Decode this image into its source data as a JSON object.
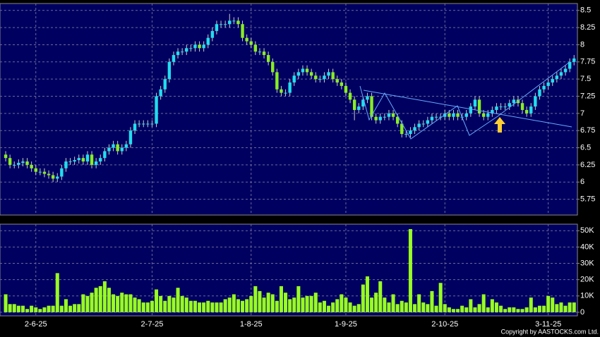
{
  "chart_data": [
    {
      "type": "candlestick",
      "categories": [
        null,
        null,
        null,
        null,
        null,
        null,
        null,
        "2-6-25",
        null,
        null,
        null,
        null,
        null,
        null,
        null,
        null,
        null,
        null,
        null,
        null,
        null,
        null,
        null,
        null,
        null,
        null,
        null,
        null,
        null,
        null,
        null,
        null,
        null,
        null,
        "2-7-25",
        null,
        null,
        null,
        null,
        null,
        null,
        null,
        null,
        null,
        null,
        null,
        null,
        null,
        null,
        null,
        null,
        null,
        null,
        null,
        null,
        null,
        null,
        "1-8-25",
        null,
        null,
        null,
        null,
        null,
        null,
        null,
        null,
        null,
        null,
        null,
        null,
        null,
        null,
        null,
        null,
        null,
        null,
        null,
        null,
        null,
        "1-9-25",
        null,
        null,
        null,
        null,
        null,
        null,
        null,
        null,
        null,
        null,
        null,
        null,
        null,
        null,
        null,
        null,
        null,
        null,
        null,
        null,
        null,
        null,
        "2-10-25",
        null,
        null,
        null,
        null,
        null,
        null,
        null,
        null,
        null,
        null,
        null,
        null,
        null,
        null,
        null,
        null,
        null,
        null,
        null,
        null,
        null,
        null,
        null,
        "3-11-25",
        null,
        null,
        null,
        null,
        null,
        null
      ],
      "open": [
        6.4,
        6.35,
        6.25,
        6.25,
        6.28,
        6.3,
        6.25,
        6.2,
        6.15,
        6.15,
        6.12,
        6.1,
        6.05,
        6.08,
        6.2,
        6.3,
        6.3,
        6.32,
        6.35,
        6.3,
        6.4,
        6.25,
        6.3,
        6.35,
        6.45,
        6.5,
        6.55,
        6.45,
        6.5,
        6.55,
        6.75,
        6.85,
        6.85,
        6.85,
        6.85,
        6.85,
        7.25,
        7.35,
        7.5,
        7.75,
        7.85,
        7.9,
        7.9,
        7.95,
        7.95,
        8.0,
        7.95,
        8.0,
        8.1,
        8.2,
        8.3,
        8.3,
        8.3,
        8.35,
        8.35,
        8.3,
        8.1,
        8.05,
        8.0,
        7.9,
        7.9,
        7.85,
        7.75,
        7.6,
        7.35,
        7.3,
        7.3,
        7.45,
        7.55,
        7.6,
        7.65,
        7.6,
        7.55,
        7.5,
        7.5,
        7.55,
        7.6,
        7.5,
        7.45,
        7.4,
        7.3,
        7.2,
        7.05,
        7.1,
        7.2,
        7.25,
        6.95,
        6.9,
        6.95,
        6.95,
        7.0,
        6.95,
        6.85,
        6.7,
        6.7,
        6.75,
        6.8,
        6.85,
        6.85,
        6.9,
        6.95,
        6.95,
        6.95,
        7.0,
        6.95,
        7.0,
        6.95,
        6.95,
        7.0,
        7.1,
        7.2,
        7.0,
        6.95,
        7.0,
        7.05,
        7.1,
        7.1,
        7.1,
        7.15,
        7.2,
        7.15,
        7.05,
        7.0,
        7.1,
        7.25,
        7.35,
        7.4,
        7.45,
        7.5,
        7.55,
        7.6,
        7.65,
        7.75
      ],
      "high": [
        6.45,
        6.4,
        6.3,
        6.33,
        6.35,
        6.35,
        6.3,
        6.25,
        6.2,
        6.2,
        6.17,
        6.15,
        6.13,
        6.25,
        6.35,
        6.35,
        6.37,
        6.4,
        6.4,
        6.45,
        6.45,
        6.35,
        6.4,
        6.5,
        6.55,
        6.6,
        6.6,
        6.55,
        6.6,
        6.8,
        6.9,
        6.9,
        6.9,
        6.9,
        6.9,
        7.3,
        7.4,
        7.55,
        7.8,
        7.9,
        7.95,
        7.95,
        8.0,
        8.0,
        8.05,
        8.05,
        8.05,
        8.15,
        8.25,
        8.35,
        8.35,
        8.35,
        8.45,
        8.4,
        8.4,
        8.35,
        8.15,
        8.1,
        8.05,
        7.95,
        7.95,
        7.9,
        7.8,
        7.65,
        7.4,
        7.35,
        7.5,
        7.6,
        7.65,
        7.7,
        7.7,
        7.65,
        7.6,
        7.55,
        7.6,
        7.65,
        7.65,
        7.55,
        7.5,
        7.45,
        7.35,
        7.25,
        7.15,
        7.25,
        7.3,
        7.3,
        7.0,
        7.0,
        7.0,
        7.05,
        7.05,
        7.0,
        6.9,
        6.75,
        6.8,
        6.85,
        6.9,
        6.9,
        6.95,
        7.0,
        7.0,
        7.0,
        7.05,
        7.05,
        7.05,
        7.05,
        7.0,
        7.05,
        7.15,
        7.25,
        7.25,
        7.05,
        7.05,
        7.1,
        7.15,
        7.15,
        7.15,
        7.2,
        7.25,
        7.25,
        7.2,
        7.1,
        7.15,
        7.3,
        7.4,
        7.45,
        7.5,
        7.55,
        7.6,
        7.65,
        7.7,
        7.8,
        7.85
      ],
      "low": [
        6.3,
        6.2,
        6.2,
        6.2,
        6.23,
        6.2,
        6.15,
        6.1,
        6.1,
        6.07,
        6.05,
        6.0,
        6.0,
        6.03,
        6.15,
        6.25,
        6.25,
        6.27,
        6.25,
        6.25,
        6.2,
        6.2,
        6.25,
        6.3,
        6.4,
        6.45,
        6.4,
        6.4,
        6.45,
        6.5,
        6.7,
        6.8,
        6.8,
        6.8,
        6.8,
        6.8,
        7.2,
        7.3,
        7.45,
        7.7,
        7.8,
        7.85,
        7.85,
        7.9,
        7.9,
        7.9,
        7.9,
        7.95,
        8.05,
        8.15,
        8.25,
        8.25,
        8.25,
        8.3,
        8.25,
        8.05,
        8.0,
        7.95,
        7.85,
        7.85,
        7.8,
        7.7,
        7.55,
        7.3,
        7.25,
        7.25,
        7.25,
        7.4,
        7.5,
        7.55,
        7.55,
        7.5,
        7.45,
        7.45,
        7.45,
        7.5,
        7.45,
        7.4,
        7.35,
        7.25,
        7.15,
        6.9,
        7.0,
        7.05,
        7.15,
        6.9,
        6.85,
        6.85,
        6.9,
        6.9,
        6.9,
        6.8,
        6.65,
        6.65,
        6.65,
        6.7,
        6.75,
        6.8,
        6.8,
        6.85,
        6.9,
        6.9,
        6.9,
        6.9,
        6.9,
        6.9,
        6.9,
        6.9,
        6.95,
        7.05,
        6.95,
        6.9,
        6.9,
        6.95,
        7.0,
        7.05,
        7.05,
        7.05,
        7.1,
        7.1,
        7.0,
        6.95,
        6.95,
        7.05,
        7.2,
        7.3,
        7.35,
        7.4,
        7.45,
        7.5,
        7.55,
        7.6,
        7.7
      ],
      "close": [
        6.35,
        6.25,
        6.25,
        6.28,
        6.3,
        6.25,
        6.2,
        6.15,
        6.15,
        6.12,
        6.1,
        6.05,
        6.08,
        6.2,
        6.3,
        6.3,
        6.32,
        6.35,
        6.3,
        6.4,
        6.25,
        6.3,
        6.35,
        6.45,
        6.5,
        6.55,
        6.45,
        6.5,
        6.55,
        6.75,
        6.85,
        6.85,
        6.85,
        6.85,
        6.85,
        7.25,
        7.35,
        7.5,
        7.75,
        7.85,
        7.9,
        7.9,
        7.95,
        7.95,
        8.0,
        7.95,
        8.0,
        8.1,
        8.2,
        8.3,
        8.3,
        8.3,
        8.35,
        8.35,
        8.3,
        8.1,
        8.05,
        8.0,
        7.9,
        7.9,
        7.85,
        7.75,
        7.6,
        7.35,
        7.3,
        7.3,
        7.45,
        7.55,
        7.6,
        7.65,
        7.6,
        7.55,
        7.5,
        7.5,
        7.55,
        7.6,
        7.5,
        7.45,
        7.4,
        7.3,
        7.2,
        7.05,
        7.1,
        7.2,
        7.25,
        6.95,
        6.9,
        6.95,
        6.95,
        7.0,
        6.95,
        6.85,
        6.7,
        6.7,
        6.75,
        6.8,
        6.85,
        6.85,
        6.9,
        6.95,
        6.95,
        6.95,
        7.0,
        6.95,
        7.0,
        6.95,
        6.95,
        7.0,
        7.1,
        7.2,
        7.0,
        6.95,
        7.0,
        7.05,
        7.1,
        7.1,
        7.1,
        7.15,
        7.2,
        7.15,
        7.05,
        7.0,
        7.1,
        7.25,
        7.35,
        7.4,
        7.45,
        7.5,
        7.55,
        7.6,
        7.65,
        7.75,
        7.8
      ],
      "up_color": "#22ddee",
      "down_color": "#88ee22",
      "ylim": [
        5.52,
        8.6
      ],
      "yticks": [
        5.75,
        6,
        6.25,
        6.5,
        6.75,
        7,
        7.25,
        7.5,
        7.75,
        8,
        8.25,
        8.5
      ],
      "grid": true
    },
    {
      "type": "bar",
      "values": [
        11000,
        5000,
        5000,
        4000,
        4000,
        2000,
        4000,
        3000,
        2000,
        3000,
        4000,
        4000,
        24000,
        4000,
        8000,
        4000,
        5000,
        5000,
        11000,
        10000,
        12000,
        15000,
        16000,
        19000,
        15000,
        11000,
        10000,
        12000,
        11000,
        11000,
        9000,
        8000,
        6000,
        6000,
        7000,
        14000,
        10000,
        7000,
        10000,
        9000,
        15000,
        10000,
        9000,
        7000,
        7000,
        6000,
        6000,
        7000,
        6000,
        6000,
        6000,
        8000,
        9000,
        11000,
        8000,
        7000,
        8000,
        10000,
        16000,
        13000,
        9000,
        12000,
        11000,
        7000,
        16000,
        12000,
        8000,
        9000,
        16000,
        9000,
        10000,
        10000,
        12000,
        6000,
        7000,
        4000,
        6000,
        8000,
        11000,
        9000,
        6000,
        4000,
        5000,
        17000,
        22000,
        9000,
        12000,
        19000,
        9000,
        6000,
        11000,
        5000,
        7000,
        6000,
        51000,
        5000,
        11000,
        6000,
        5000,
        13000,
        4000,
        18000,
        5000,
        3000,
        2000,
        2000,
        4000,
        3000,
        8000,
        3000,
        5000,
        11000,
        3000,
        8000,
        6000,
        4000,
        2000,
        3000,
        3000,
        2000,
        2000,
        3000,
        9000,
        3000,
        4000,
        4000,
        10000,
        9000,
        5000,
        6000,
        4000,
        6000,
        6000
      ],
      "color": "#99ff22",
      "ylim": [
        -2200,
        54000
      ],
      "yticks": [
        0,
        {
          "value": 10000,
          "label": "10K"
        },
        {
          "value": 20000,
          "label": "20K"
        },
        {
          "value": 30000,
          "label": "30K"
        },
        {
          "value": 40000,
          "label": "40K"
        },
        {
          "value": 50000,
          "label": "50K"
        }
      ],
      "grid": true
    }
  ],
  "copyright": "Copyright by AASTOCKS.com Ltd."
}
